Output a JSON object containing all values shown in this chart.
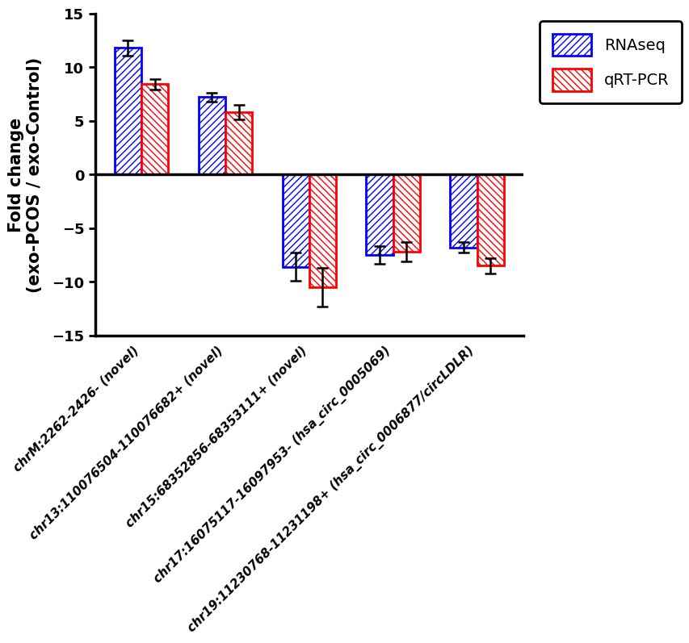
{
  "categories": [
    "chrM:2262-2426- (novel)",
    "chr13:110076504-110076682+ (novel)",
    "chr15:68352856-68353111+ (novel)",
    "chr17:16075117-16097953- (hsa_circ_0005069)",
    "chr19:11230768-11231198+ (hsa_circ_0006877/circLDLR)"
  ],
  "rnaseq_values": [
    11.8,
    7.2,
    -8.6,
    -7.5,
    -6.8
  ],
  "qrtpcr_values": [
    8.4,
    5.8,
    -10.5,
    -7.2,
    -8.5
  ],
  "rnaseq_errors": [
    0.7,
    0.4,
    1.3,
    0.8,
    0.5
  ],
  "qrtpcr_errors": [
    0.5,
    0.7,
    1.8,
    0.9,
    0.7
  ],
  "rnaseq_color": "#0000FF",
  "qrtpcr_color": "#FF0000",
  "ylim": [
    -15,
    15
  ],
  "yticks": [
    -15,
    -10,
    -5,
    0,
    5,
    10,
    15
  ],
  "ylabel_line1": "Fold change",
  "ylabel_line2": "(exo-PCOS / exo-Control)",
  "legend_labels": [
    "RNAseq",
    "qRT-PCR"
  ],
  "bar_width": 0.32,
  "background_color": "#FFFFFF",
  "label_fontsize": 15,
  "tick_fontsize": 13,
  "cat_fontsize": 11
}
